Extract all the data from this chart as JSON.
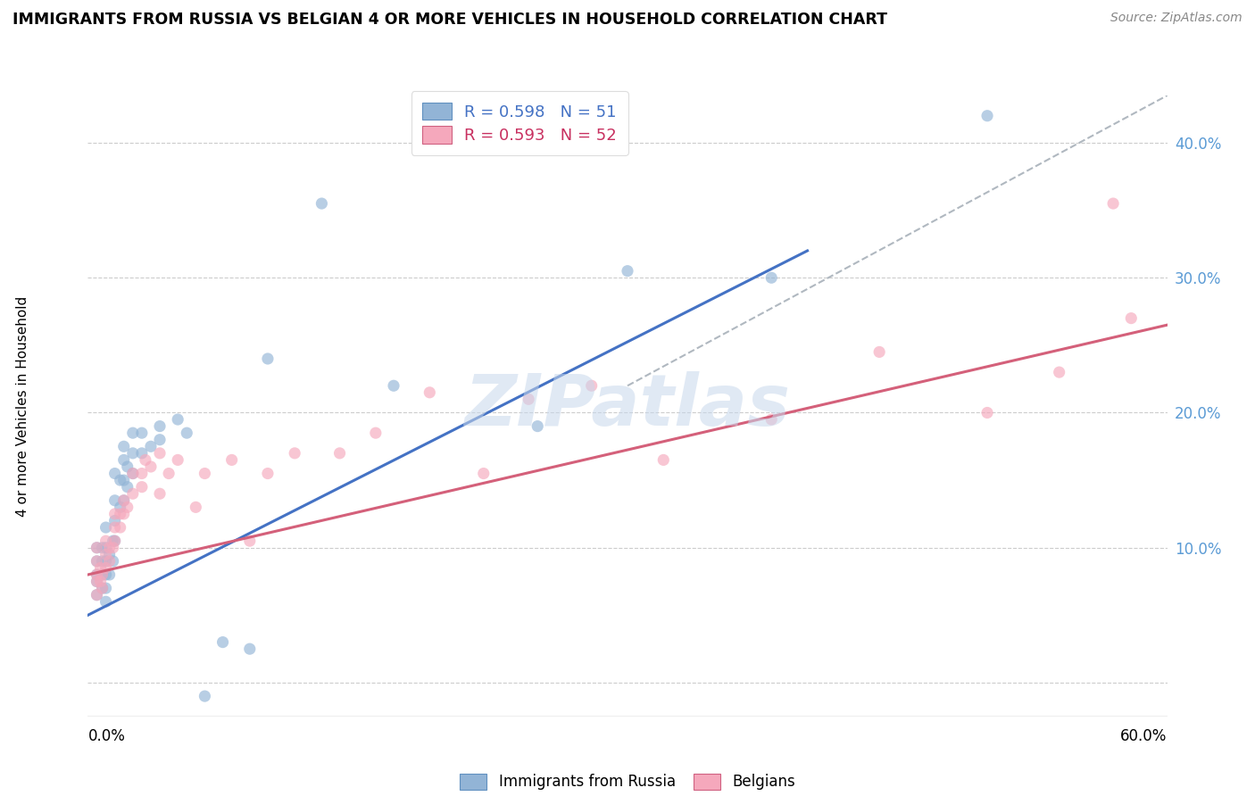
{
  "title": "IMMIGRANTS FROM RUSSIA VS BELGIAN 4 OR MORE VEHICLES IN HOUSEHOLD CORRELATION CHART",
  "source": "Source: ZipAtlas.com",
  "legend_label_russia": "Immigrants from Russia",
  "legend_label_belgians": "Belgians",
  "legend_r_russia": "R = 0.598",
  "legend_n_russia": "N = 51",
  "legend_r_belgian": "R = 0.593",
  "legend_n_belgian": "N = 52",
  "xmin": 0.0,
  "xmax": 0.6,
  "ymin": -0.025,
  "ymax": 0.435,
  "blue_scatter_color": "#92b4d6",
  "pink_scatter_color": "#f5a8bc",
  "blue_line_color": "#4472c4",
  "pink_line_color": "#d4607a",
  "ref_line_color": "#b0b8c0",
  "watermark_color": "#c8d8ec",
  "yticks": [
    0.0,
    0.1,
    0.2,
    0.3,
    0.4
  ],
  "ytick_labels": [
    "",
    "10.0%",
    "20.0%",
    "30.0%",
    "40.0%"
  ],
  "blue_line_x": [
    0.0,
    0.4
  ],
  "blue_line_y": [
    0.05,
    0.32
  ],
  "pink_line_x": [
    0.0,
    0.6
  ],
  "pink_line_y": [
    0.08,
    0.265
  ],
  "ref_line_x": [
    0.3,
    0.6
  ],
  "ref_line_y": [
    0.22,
    0.435
  ],
  "russia_x": [
    0.005,
    0.005,
    0.005,
    0.005,
    0.005,
    0.008,
    0.008,
    0.008,
    0.008,
    0.01,
    0.01,
    0.01,
    0.01,
    0.01,
    0.01,
    0.012,
    0.012,
    0.014,
    0.014,
    0.015,
    0.015,
    0.015,
    0.015,
    0.018,
    0.018,
    0.02,
    0.02,
    0.02,
    0.02,
    0.022,
    0.022,
    0.025,
    0.025,
    0.025,
    0.03,
    0.03,
    0.035,
    0.04,
    0.04,
    0.05,
    0.055,
    0.065,
    0.075,
    0.09,
    0.1,
    0.13,
    0.17,
    0.25,
    0.3,
    0.38,
    0.5
  ],
  "russia_y": [
    0.065,
    0.075,
    0.08,
    0.09,
    0.1,
    0.07,
    0.08,
    0.09,
    0.1,
    0.06,
    0.07,
    0.08,
    0.09,
    0.1,
    0.115,
    0.08,
    0.095,
    0.09,
    0.105,
    0.105,
    0.12,
    0.135,
    0.155,
    0.13,
    0.15,
    0.135,
    0.15,
    0.165,
    0.175,
    0.145,
    0.16,
    0.155,
    0.17,
    0.185,
    0.17,
    0.185,
    0.175,
    0.18,
    0.19,
    0.195,
    0.185,
    -0.01,
    0.03,
    0.025,
    0.24,
    0.355,
    0.22,
    0.19,
    0.305,
    0.3,
    0.42
  ],
  "belgian_x": [
    0.005,
    0.005,
    0.005,
    0.005,
    0.005,
    0.007,
    0.007,
    0.008,
    0.008,
    0.01,
    0.01,
    0.01,
    0.012,
    0.012,
    0.014,
    0.015,
    0.015,
    0.015,
    0.018,
    0.018,
    0.02,
    0.02,
    0.022,
    0.025,
    0.025,
    0.03,
    0.03,
    0.032,
    0.035,
    0.04,
    0.04,
    0.045,
    0.05,
    0.06,
    0.065,
    0.08,
    0.09,
    0.1,
    0.115,
    0.14,
    0.16,
    0.19,
    0.22,
    0.245,
    0.28,
    0.32,
    0.38,
    0.44,
    0.5,
    0.54,
    0.57,
    0.58
  ],
  "belgian_y": [
    0.065,
    0.075,
    0.08,
    0.09,
    0.1,
    0.075,
    0.085,
    0.07,
    0.08,
    0.085,
    0.095,
    0.105,
    0.09,
    0.1,
    0.1,
    0.105,
    0.115,
    0.125,
    0.115,
    0.125,
    0.125,
    0.135,
    0.13,
    0.14,
    0.155,
    0.145,
    0.155,
    0.165,
    0.16,
    0.17,
    0.14,
    0.155,
    0.165,
    0.13,
    0.155,
    0.165,
    0.105,
    0.155,
    0.17,
    0.17,
    0.185,
    0.215,
    0.155,
    0.21,
    0.22,
    0.165,
    0.195,
    0.245,
    0.2,
    0.23,
    0.355,
    0.27
  ]
}
